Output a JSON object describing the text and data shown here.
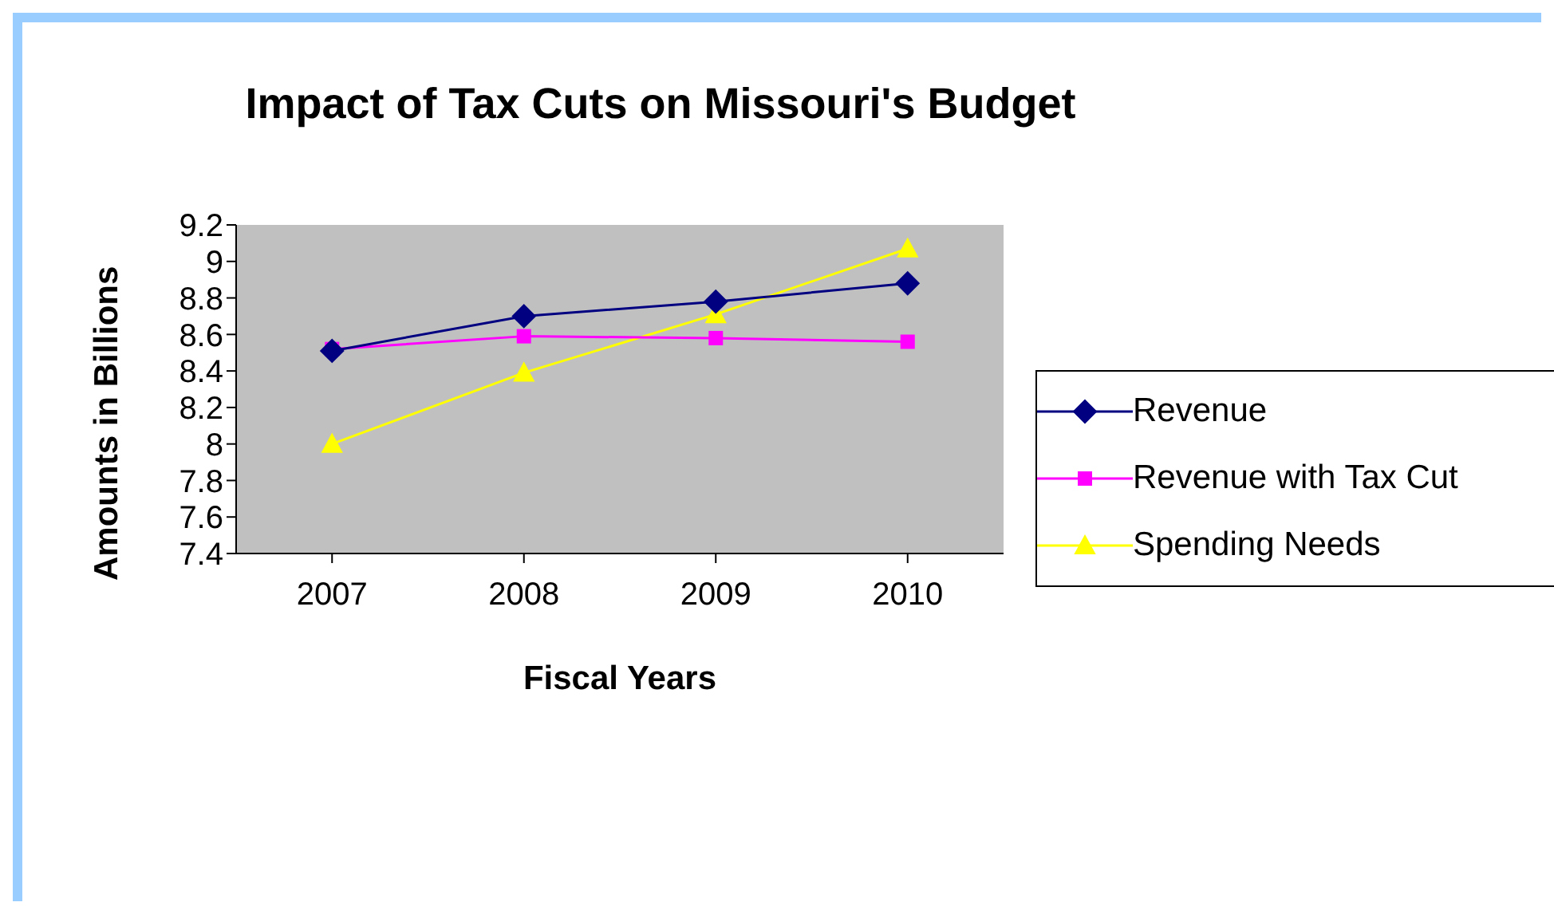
{
  "chart_data": {
    "type": "line",
    "title": "Impact of Tax Cuts on Missouri's Budget",
    "xlabel": "Fiscal Years",
    "ylabel": "Amounts in Billions",
    "categories": [
      "2007",
      "2008",
      "2009",
      "2010"
    ],
    "series": [
      {
        "name": "Revenue",
        "color": "#000080",
        "marker": "diamond",
        "values": [
          8.51,
          8.7,
          8.78,
          8.88
        ]
      },
      {
        "name": "Revenue with Tax Cut",
        "color": "#ff00ff",
        "marker": "square",
        "values": [
          8.52,
          8.59,
          8.58,
          8.56
        ]
      },
      {
        "name": "Spending Needs",
        "color": "#ffff00",
        "marker": "triangle",
        "values": [
          8.0,
          8.39,
          8.71,
          9.07
        ]
      }
    ],
    "ylim": [
      7.4,
      9.2
    ],
    "yticks": [
      7.4,
      7.6,
      7.8,
      8,
      8.2,
      8.4,
      8.6,
      8.8,
      9,
      9.2
    ],
    "legend": "right"
  }
}
